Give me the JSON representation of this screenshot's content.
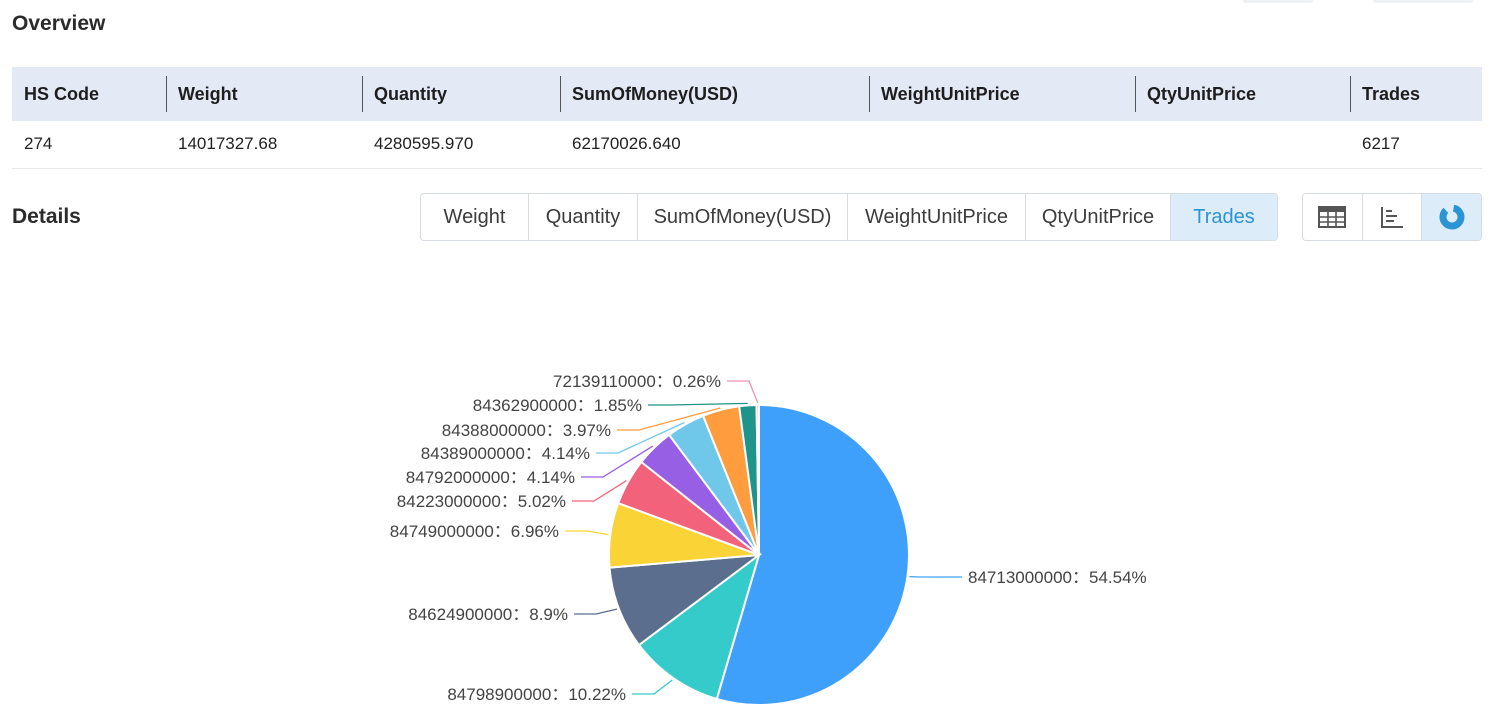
{
  "overview": {
    "title": "Overview",
    "columns": [
      "HS Code",
      "Weight",
      "Quantity",
      "SumOfMoney(USD)",
      "WeightUnitPrice",
      "QtyUnitPrice",
      "Trades"
    ],
    "row": [
      "274",
      "14017327.68",
      "4280595.970",
      "62170026.640",
      "",
      "",
      "6217"
    ]
  },
  "details": {
    "title": "Details",
    "tabs": [
      "Weight",
      "Quantity",
      "SumOfMoney(USD)",
      "WeightUnitPrice",
      "QtyUnitPrice",
      "Trades"
    ],
    "active_tab": "Trades",
    "view_buttons": [
      {
        "icon": "table-icon",
        "active": false
      },
      {
        "icon": "bar-chart-icon",
        "active": false
      },
      {
        "icon": "pie-chart-icon",
        "active": true
      }
    ]
  },
  "chart_data": {
    "type": "pie",
    "separator": "：",
    "slices": [
      {
        "label": "84713000000",
        "value": 54.54,
        "display": "54.54%",
        "color": "#3fa0fb"
      },
      {
        "label": "84798900000",
        "value": 10.22,
        "display": "10.22%",
        "color": "#36cbcb"
      },
      {
        "label": "84624900000",
        "value": 8.9,
        "display": "8.9%",
        "color": "#5b6e8e"
      },
      {
        "label": "84749000000",
        "value": 6.96,
        "display": "6.96%",
        "color": "#fad337"
      },
      {
        "label": "84223000000",
        "value": 5.02,
        "display": "5.02%",
        "color": "#f2637b"
      },
      {
        "label": "84792000000",
        "value": 4.14,
        "display": "4.14%",
        "color": "#975fe4"
      },
      {
        "label": "84389000000",
        "value": 4.14,
        "display": "4.14%",
        "color": "#6fc7ea"
      },
      {
        "label": "84388000000",
        "value": 3.97,
        "display": "3.97%",
        "color": "#ff9c3e"
      },
      {
        "label": "84362900000",
        "value": 1.85,
        "display": "1.85%",
        "color": "#1f948a"
      },
      {
        "label": "72139110000",
        "value": 0.26,
        "display": "0.26%",
        "color": "#f491b4"
      }
    ]
  }
}
